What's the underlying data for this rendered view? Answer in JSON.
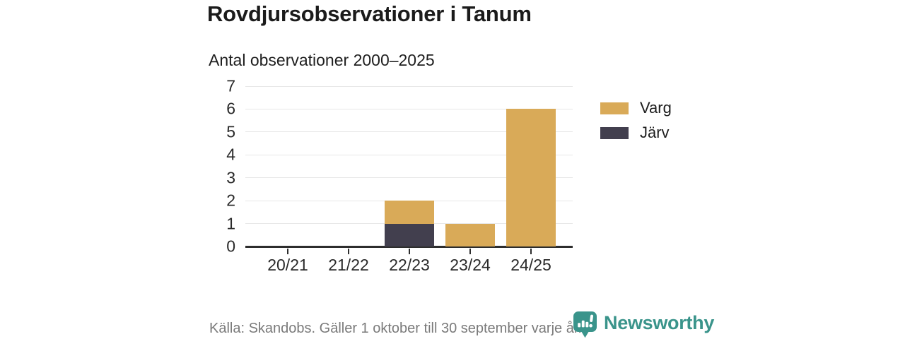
{
  "header": {
    "title": "Rovdjursobservationer i Tanum",
    "subtitle": "Antal observationer 2000–2025"
  },
  "chart_data": {
    "type": "bar",
    "stacked": true,
    "title": "Rovdjursobservationer i Tanum",
    "subtitle": "Antal observationer 2000–2025",
    "categories": [
      "20/21",
      "21/22",
      "22/23",
      "23/24",
      "24/25"
    ],
    "series": [
      {
        "name": "Varg",
        "color": "#d9aa58",
        "values": [
          0,
          0,
          1,
          1,
          6
        ]
      },
      {
        "name": "Järv",
        "color": "#423f4e",
        "values": [
          0,
          0,
          1,
          0,
          0
        ]
      }
    ],
    "stack_order_bottom_to_top": [
      "Järv",
      "Varg"
    ],
    "totals": [
      0,
      0,
      2,
      1,
      6
    ],
    "xlabel": "",
    "ylabel": "",
    "ylim": [
      0,
      7
    ],
    "yticks": [
      0,
      1,
      2,
      3,
      4,
      5,
      6,
      7
    ],
    "grid": true,
    "legend_position": "right",
    "axis_color": "#2d2d2d",
    "gridline_color": "#e7e7e7",
    "text_color": "#2a2a2a"
  },
  "footer": {
    "source": "Källa: Skandobs. Gäller 1 oktober till 30 september varje år.",
    "brand": "Newsworthy",
    "brand_color": "#3a948b",
    "logo_icon": "speech-bubble-bar-chart-exclamation"
  }
}
